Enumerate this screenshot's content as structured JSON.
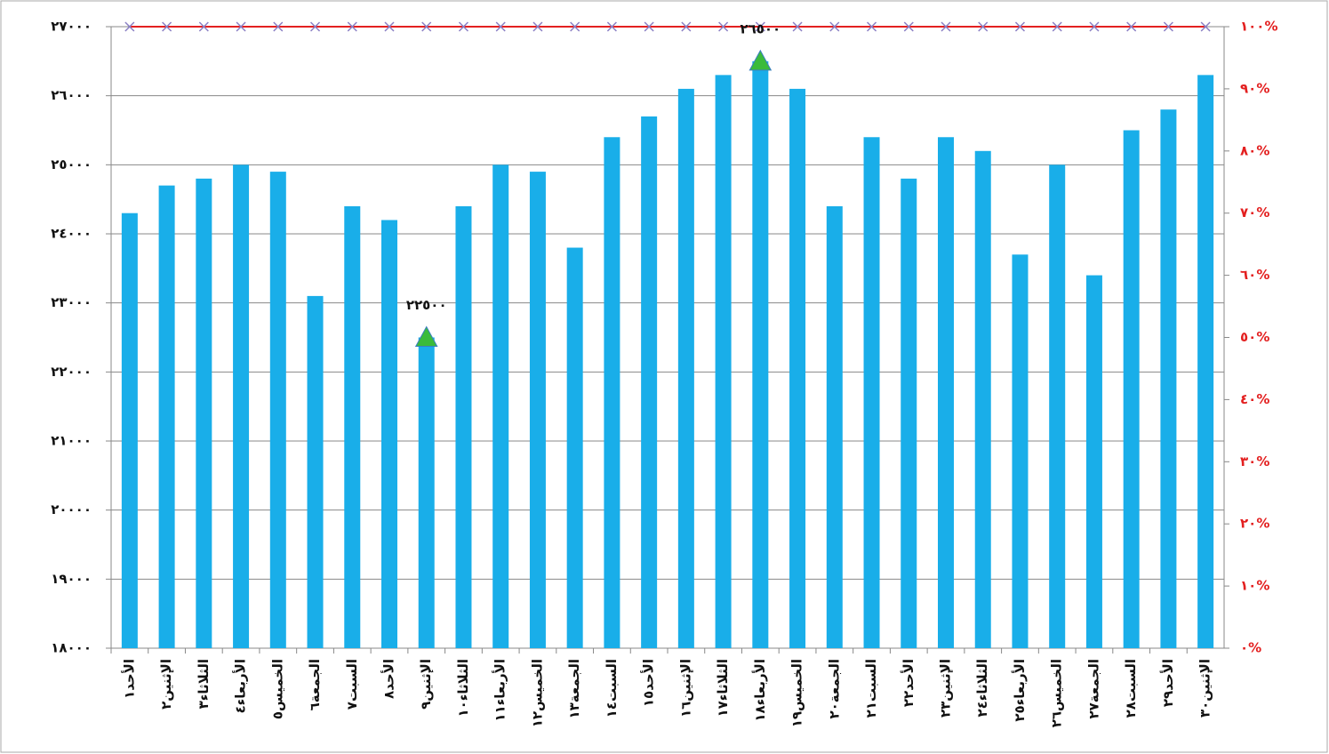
{
  "chart_data": {
    "type": "bar",
    "categories": [
      "الأحد١",
      "الإثنين٢",
      "الثلاثاء٣",
      "الأربعاء٤",
      "الخميس٥",
      "الجمعة٦",
      "السبت٧",
      "الأحد٨",
      "الإثنين٩",
      "الثلاثاء١٠",
      "الأربعاء١١",
      "الخميس١٢",
      "الجمعة١٣",
      "السبت١٤",
      "الأحد١٥",
      "الإثنين١٦",
      "الثلاثاء١٧",
      "الأربعاء١٨",
      "الخميس١٩",
      "الجمعة٢٠",
      "السبت٢١",
      "الأحد٢٢",
      "الإثنين٢٣",
      "الثلاثاء٢٤",
      "الأربعاء٢٥",
      "الخميس٢٦",
      "الجمعة٢٧",
      "السبت٢٨",
      "الأحد٢٩",
      "الإثنين٣٠"
    ],
    "series": [
      {
        "type": "bar",
        "color": "#19aee9",
        "values": [
          24300,
          24700,
          24800,
          25000,
          24900,
          23100,
          24400,
          24200,
          22500,
          24400,
          25000,
          24900,
          23800,
          25400,
          25700,
          26100,
          26300,
          26500,
          26100,
          24400,
          25400,
          24800,
          25400,
          25200,
          23700,
          25000,
          23400,
          25500,
          25800,
          26300
        ]
      },
      {
        "type": "line",
        "axis": "y2",
        "color": "#e32020",
        "marker": "x",
        "marker_color": "#8a7fc4",
        "values": [
          100,
          100,
          100,
          100,
          100,
          100,
          100,
          100,
          100,
          100,
          100,
          100,
          100,
          100,
          100,
          100,
          100,
          100,
          100,
          100,
          100,
          100,
          100,
          100,
          100,
          100,
          100,
          100,
          100,
          100
        ]
      },
      {
        "type": "scatter",
        "marker": "triangle",
        "color": "#3bbb3b",
        "values": [
          null,
          null,
          null,
          null,
          null,
          null,
          null,
          null,
          22500,
          null,
          null,
          null,
          null,
          null,
          null,
          null,
          null,
          null,
          null,
          null,
          null,
          null,
          null,
          null,
          null,
          null,
          null,
          null,
          null,
          null
        ],
        "value_labels": [
          null,
          null,
          null,
          null,
          null,
          null,
          null,
          null,
          "٢٢٥٠٠",
          null,
          null,
          null,
          null,
          null,
          null,
          null,
          null,
          null,
          null,
          null,
          null,
          null,
          null,
          null,
          null,
          null,
          null,
          null,
          null,
          null
        ]
      },
      {
        "type": "scatter",
        "marker": "triangle",
        "color": "#3bbb3b",
        "values": [
          null,
          null,
          null,
          null,
          null,
          null,
          null,
          null,
          null,
          null,
          null,
          null,
          null,
          null,
          null,
          null,
          null,
          26500,
          null,
          null,
          null,
          null,
          null,
          null,
          null,
          null,
          null,
          null,
          null,
          null
        ],
        "value_labels": [
          null,
          null,
          null,
          null,
          null,
          null,
          null,
          null,
          null,
          null,
          null,
          null,
          null,
          null,
          null,
          null,
          null,
          "٢٦٥٠٠",
          null,
          null,
          null,
          null,
          null,
          null,
          null,
          null,
          null,
          null,
          null,
          null
        ]
      }
    ],
    "ylim": [
      18000,
      27000
    ],
    "yticks": [
      {
        "value": 18000,
        "label": "١٨٠٠٠"
      },
      {
        "value": 19000,
        "label": "١٩٠٠٠"
      },
      {
        "value": 20000,
        "label": "٢٠٠٠٠"
      },
      {
        "value": 21000,
        "label": "٢١٠٠٠"
      },
      {
        "value": 22000,
        "label": "٢٢٠٠٠"
      },
      {
        "value": 23000,
        "label": "٢٣٠٠٠"
      },
      {
        "value": 24000,
        "label": "٢٤٠٠٠"
      },
      {
        "value": 25000,
        "label": "٢٥٠٠٠"
      },
      {
        "value": 26000,
        "label": "٢٦٠٠٠"
      },
      {
        "value": 27000,
        "label": "٢٧٠٠٠"
      }
    ],
    "y2lim": [
      0,
      100
    ],
    "y2ticks": [
      {
        "value": 0,
        "label": "٠%"
      },
      {
        "value": 10,
        "label": "١٠%"
      },
      {
        "value": 20,
        "label": "٢٠%"
      },
      {
        "value": 30,
        "label": "٣٠%"
      },
      {
        "value": 40,
        "label": "٤٠%"
      },
      {
        "value": 50,
        "label": "٥٠%"
      },
      {
        "value": 60,
        "label": "٦٠%"
      },
      {
        "value": 70,
        "label": "٧٠%"
      },
      {
        "value": 80,
        "label": "٨٠%"
      },
      {
        "value": 90,
        "label": "٩٠%"
      },
      {
        "value": 100,
        "label": "١٠٠%"
      }
    ],
    "y2_color": "#e32020",
    "grid": true
  }
}
